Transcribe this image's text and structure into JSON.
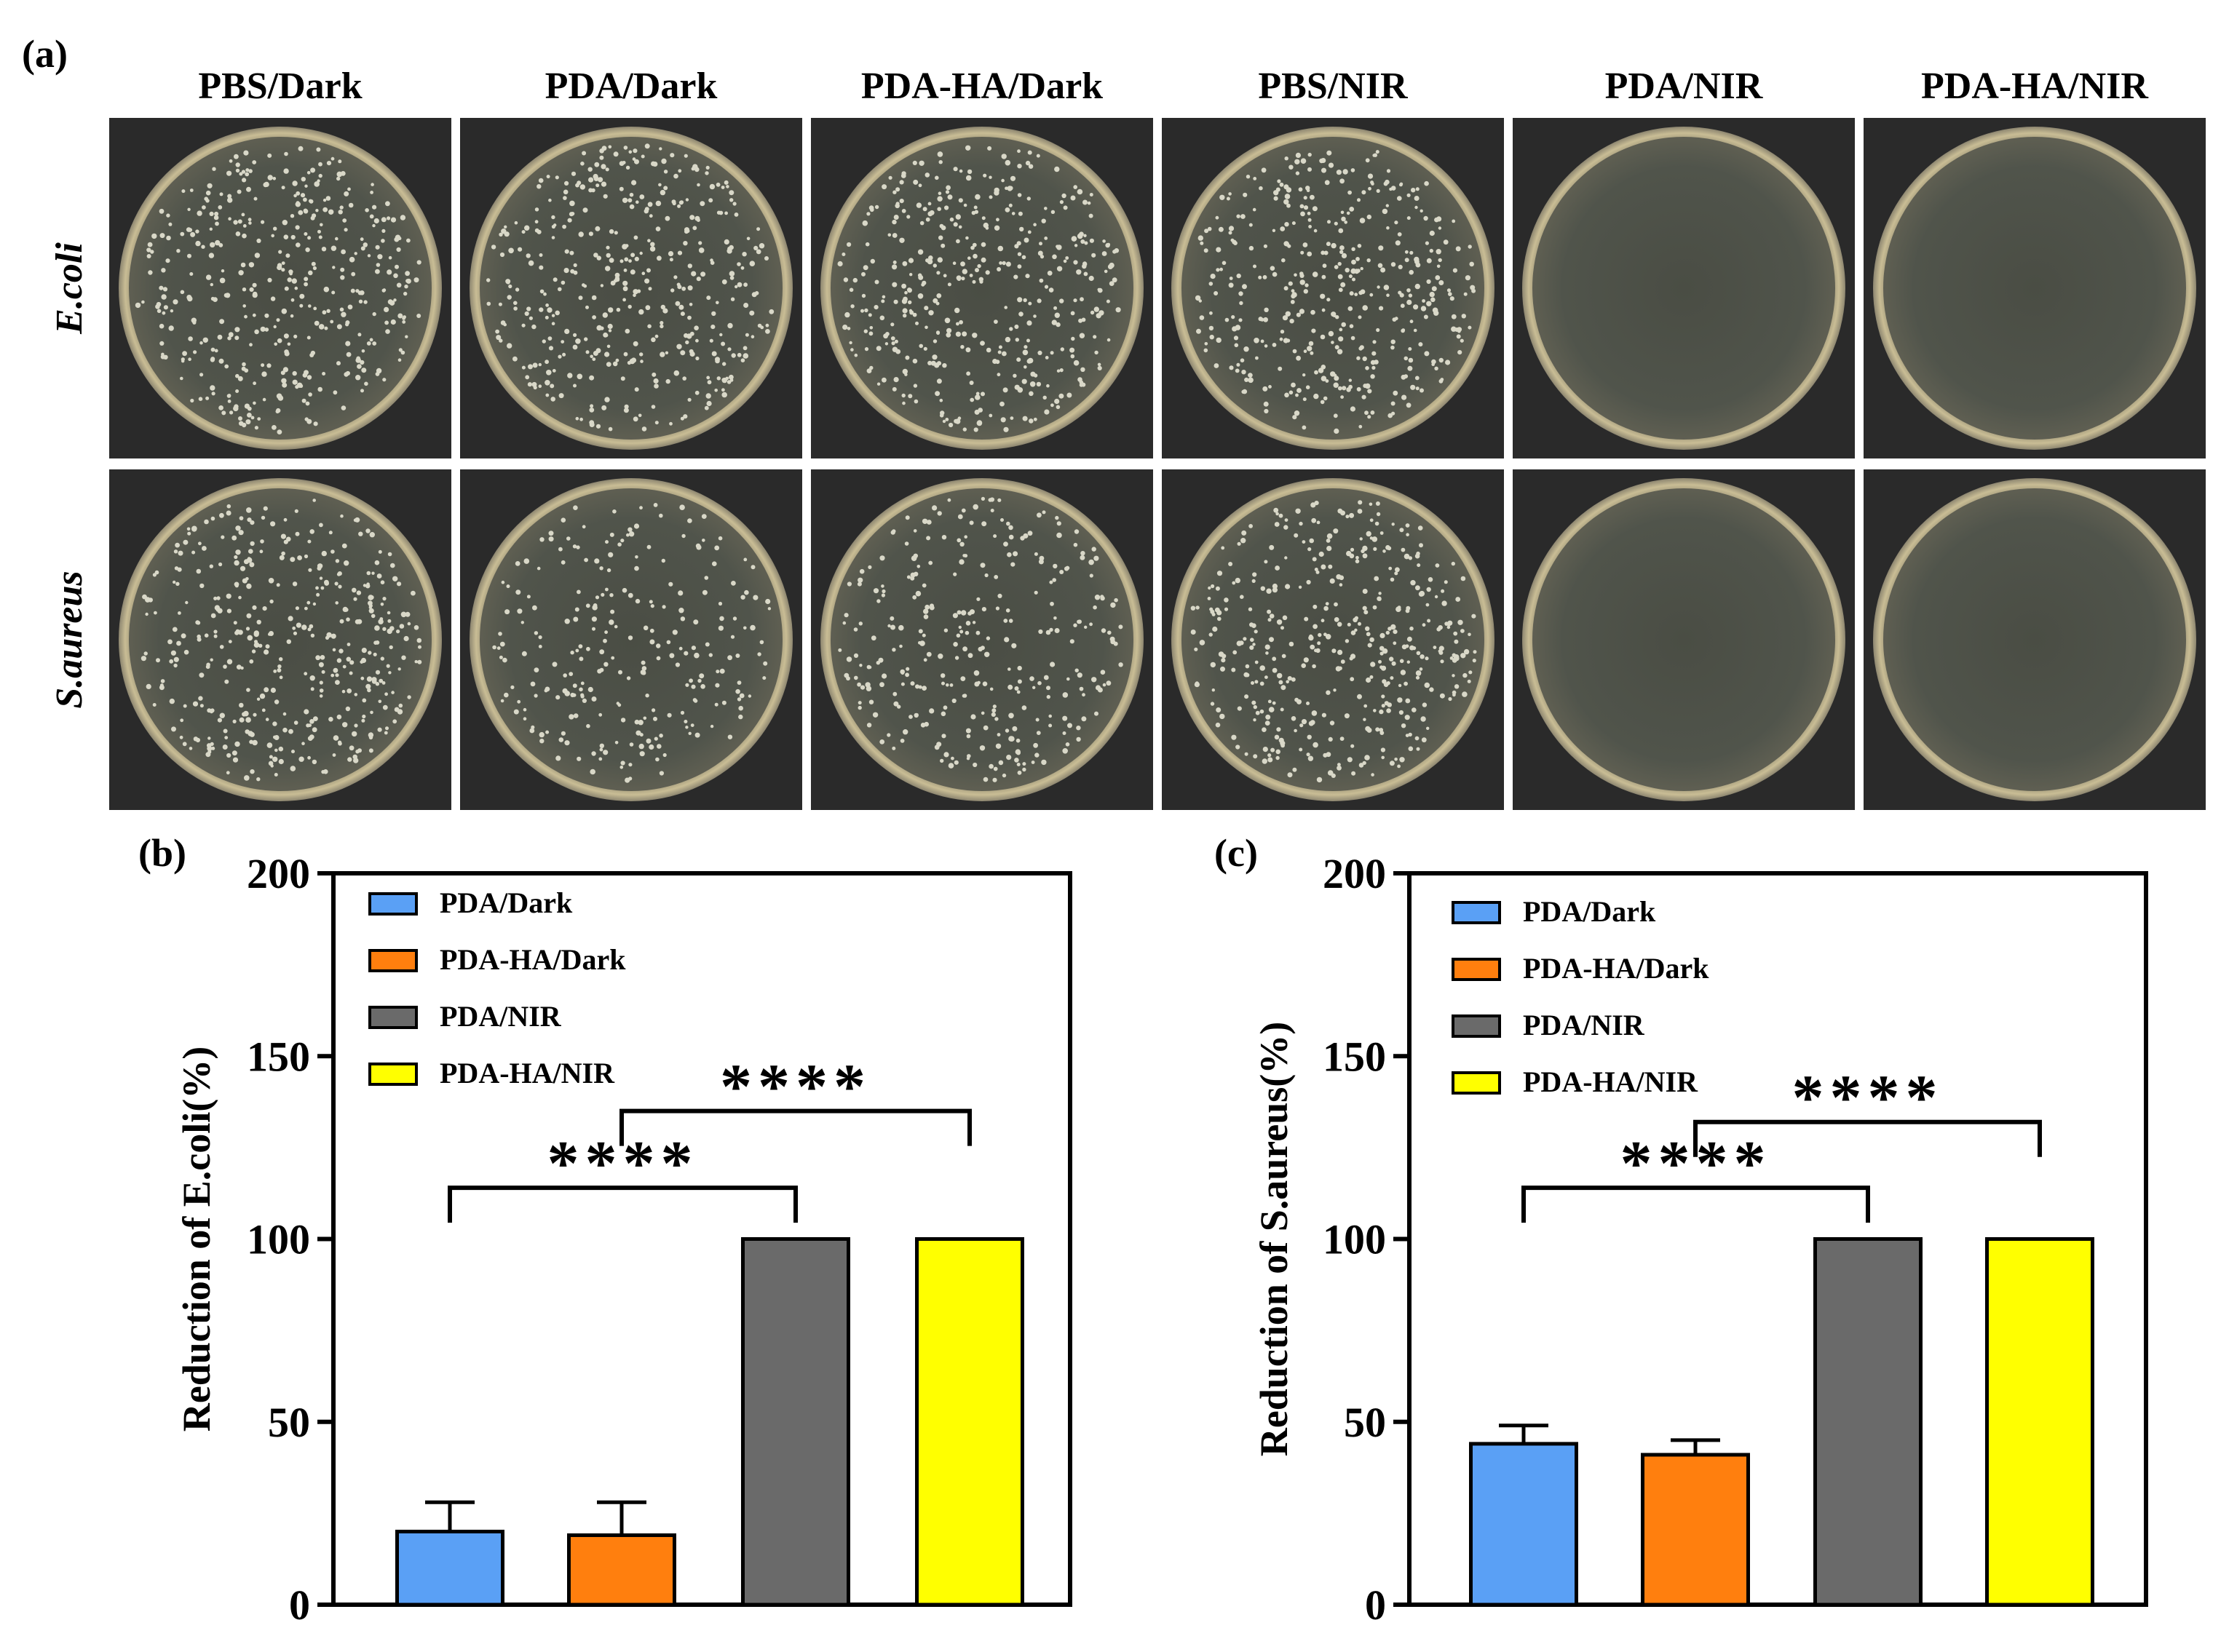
{
  "panel_a": {
    "label": "(a)",
    "columns": [
      "PBS/Dark",
      "PDA/Dark",
      "PDA-HA/Dark",
      "PBS/NIR",
      "PDA/NIR",
      "PDA-HA/NIR"
    ],
    "rows": [
      "E.coli",
      "S.aureus"
    ],
    "colony_level": [
      [
        1.0,
        1.0,
        1.0,
        1.0,
        0.0,
        0.0
      ],
      [
        1.0,
        0.6,
        0.75,
        1.0,
        0.0,
        0.0
      ]
    ]
  },
  "chart_data": [
    {
      "label": "(b)",
      "type": "bar",
      "title": "",
      "xlabel": "",
      "ylabel": "Reduction of E.coli(%)",
      "ylim": [
        0,
        200
      ],
      "yticks": [
        "0",
        "50",
        "100",
        "150",
        "200"
      ],
      "ytick_values": [
        0,
        50,
        100,
        150,
        200
      ],
      "categories": [
        "PDA/Dark",
        "PDA-HA/Dark",
        "PDA/NIR",
        "PDA-HA/NIR"
      ],
      "values": [
        20,
        19,
        100,
        100
      ],
      "errors": [
        8,
        9,
        0,
        0
      ],
      "colors": [
        "#5aa0f5",
        "#ff7f0e",
        "#6a6a6a",
        "#ffff00"
      ],
      "legend": [
        "PDA/Dark",
        "PDA-HA/Dark",
        "PDA/NIR",
        "PDA-HA/NIR"
      ],
      "legend_position": "top-left",
      "significance": [
        {
          "from": 0,
          "to": 2,
          "level": 114,
          "text": "****"
        },
        {
          "from": 1,
          "to": 3,
          "level": 135,
          "text": "****"
        }
      ]
    },
    {
      "label": "(c)",
      "type": "bar",
      "title": "",
      "xlabel": "",
      "ylabel": "Reduction of S.aureus(%)",
      "ylim": [
        0,
        200
      ],
      "yticks": [
        "0",
        "50",
        "100",
        "150",
        "200"
      ],
      "ytick_values": [
        0,
        50,
        100,
        150,
        200
      ],
      "categories": [
        "PDA/Dark",
        "PDA-HA/Dark",
        "PDA/NIR",
        "PDA-HA/NIR"
      ],
      "values": [
        44,
        41,
        100,
        100
      ],
      "errors": [
        5,
        4,
        0,
        0
      ],
      "colors": [
        "#5aa0f5",
        "#ff7f0e",
        "#6a6a6a",
        "#ffff00"
      ],
      "legend": [
        "PDA/Dark",
        "PDA-HA/Dark",
        "PDA/NIR",
        "PDA-HA/NIR"
      ],
      "legend_position": "top-left",
      "significance": [
        {
          "from": 0,
          "to": 2,
          "level": 114,
          "text": "****"
        },
        {
          "from": 1,
          "to": 3,
          "level": 132,
          "text": "****"
        }
      ]
    }
  ]
}
